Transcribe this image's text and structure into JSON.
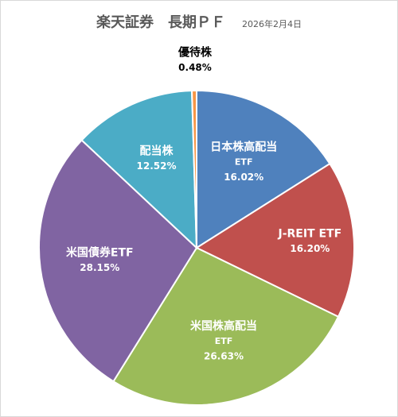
{
  "header": {
    "title": "楽天証券　長期ＰＦ",
    "date": "2026年2月4日"
  },
  "chart_data": {
    "type": "pie",
    "title": "楽天証券　長期ＰＦ",
    "subtitle": "2026年2月4日",
    "slices": [
      {
        "name": "日本株高配当ETF",
        "label_lines": [
          "日本株高配当",
          "ETF"
        ],
        "value": 16.02,
        "display": "16.02%",
        "color": "#4f81bd",
        "label_color": "#ffffff"
      },
      {
        "name": "J-REIT ETF",
        "label_lines": [
          "J-REIT ETF"
        ],
        "value": 16.2,
        "display": "16.20%",
        "color": "#c0504d",
        "label_color": "#ffffff"
      },
      {
        "name": "米国株高配当ETF",
        "label_lines": [
          "米国株高配当",
          "ETF"
        ],
        "value": 26.63,
        "display": "26.63%",
        "color": "#9bbb59",
        "label_color": "#ffffff"
      },
      {
        "name": "米国債券ETF",
        "label_lines": [
          "米国債券ETF"
        ],
        "value": 28.15,
        "display": "28.15%",
        "color": "#8064a2",
        "label_color": "#ffffff"
      },
      {
        "name": "配当株",
        "label_lines": [
          "配当株"
        ],
        "value": 12.52,
        "display": "12.52%",
        "color": "#4bacc6",
        "label_color": "#ffffff"
      },
      {
        "name": "優待株",
        "label_lines": [
          "優待株"
        ],
        "value": 0.48,
        "display": "0.48%",
        "color": "#f79646",
        "label_color": "#000000"
      }
    ]
  }
}
